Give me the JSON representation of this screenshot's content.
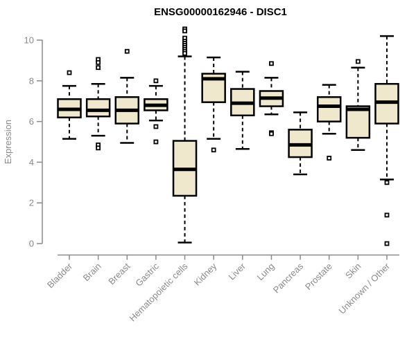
{
  "chart_data": {
    "type": "boxplot",
    "title": "ENSG00000162946 - DISC1",
    "xlabel": "",
    "ylabel": "Expression",
    "ylim": [
      0,
      10
    ],
    "yticks": [
      0,
      2,
      4,
      6,
      8,
      10
    ],
    "grid": false,
    "legend": "none",
    "colors": {
      "box_fill": "#F0E8CC",
      "box_stroke": "#000000",
      "median": "#000000",
      "whisker": "#000000",
      "axis": "#8A8A8A",
      "tick_text": "#8A8A8A",
      "title_text": "#000000",
      "background": "#FFFFFF"
    },
    "categories": [
      "Bladder",
      "Brain",
      "Breast",
      "Gastric",
      "Hematopoietic cells",
      "Kidney",
      "Liver",
      "Lung",
      "Pancreas",
      "Prostate",
      "Skin",
      "Unknown / Other"
    ],
    "series": [
      {
        "category": "Bladder",
        "whisker_low": 5.15,
        "q1": 6.2,
        "median": 6.6,
        "q3": 7.1,
        "whisker_high": 7.75,
        "outliers": [
          8.4
        ]
      },
      {
        "category": "Brain",
        "whisker_low": 5.3,
        "q1": 6.25,
        "median": 6.55,
        "q3": 7.1,
        "whisker_high": 7.85,
        "outliers": [
          9.05,
          8.9,
          8.65,
          4.85,
          4.7
        ]
      },
      {
        "category": "Breast",
        "whisker_low": 4.95,
        "q1": 5.9,
        "median": 6.55,
        "q3": 7.2,
        "whisker_high": 8.15,
        "outliers": [
          9.45
        ]
      },
      {
        "category": "Gastric",
        "whisker_low": 6.05,
        "q1": 6.55,
        "median": 6.8,
        "q3": 7.1,
        "whisker_high": 7.75,
        "outliers": [
          8.0,
          5.75,
          5.0
        ]
      },
      {
        "category": "Hematopoietic cells",
        "whisker_low": 0.05,
        "q1": 2.35,
        "median": 3.65,
        "q3": 5.05,
        "whisker_high": 9.2,
        "outliers": [
          10.55,
          10.45,
          10.1,
          9.95,
          9.85,
          9.75,
          9.65,
          9.55,
          9.45,
          9.35
        ]
      },
      {
        "category": "Kidney",
        "whisker_low": 5.15,
        "q1": 6.95,
        "median": 8.1,
        "q3": 8.35,
        "whisker_high": 9.15,
        "outliers": [
          4.6
        ]
      },
      {
        "category": "Liver",
        "whisker_low": 4.65,
        "q1": 6.3,
        "median": 6.9,
        "q3": 7.6,
        "whisker_high": 8.45,
        "outliers": []
      },
      {
        "category": "Lung",
        "whisker_low": 6.35,
        "q1": 6.75,
        "median": 7.15,
        "q3": 7.5,
        "whisker_high": 8.15,
        "outliers": [
          8.85,
          5.45,
          5.4
        ]
      },
      {
        "category": "Pancreas",
        "whisker_low": 3.4,
        "q1": 4.25,
        "median": 4.85,
        "q3": 5.6,
        "whisker_high": 6.45,
        "outliers": []
      },
      {
        "category": "Prostate",
        "whisker_low": 5.4,
        "q1": 6.0,
        "median": 6.75,
        "q3": 7.2,
        "whisker_high": 7.8,
        "outliers": [
          4.2
        ]
      },
      {
        "category": "Skin",
        "whisker_low": 4.6,
        "q1": 5.2,
        "median": 6.6,
        "q3": 6.75,
        "whisker_high": 8.65,
        "outliers": [
          8.95
        ]
      },
      {
        "category": "Unknown / Other",
        "whisker_low": 3.15,
        "q1": 5.9,
        "median": 6.95,
        "q3": 7.85,
        "whisker_high": 10.2,
        "outliers": [
          3.0,
          1.4,
          0.0
        ]
      }
    ]
  }
}
